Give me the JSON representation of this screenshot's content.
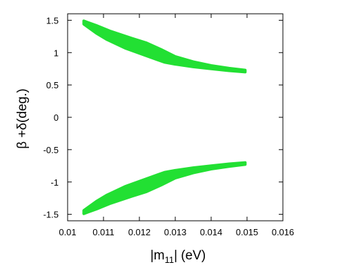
{
  "chart_data": {
    "type": "area",
    "xlabel": "|m11| (eV)",
    "xlabel_parts": {
      "pre": "|m",
      "sub": "11",
      "post": "| (eV)"
    },
    "ylabel": "β +δ(deg.)",
    "xlim": [
      0.01,
      0.016
    ],
    "ylim": [
      -1.6,
      1.6
    ],
    "xticks": [
      "0.01",
      "0.011",
      "0.012",
      "0.013",
      "0.014",
      "0.015",
      "0.016"
    ],
    "xtick_values": [
      0.01,
      0.011,
      0.012,
      0.013,
      0.014,
      0.015,
      0.016
    ],
    "yticks": [
      "1.5",
      "1",
      "0.5",
      "0",
      "-0.5",
      "-1",
      "-1.5"
    ],
    "ytick_values": [
      1.5,
      1,
      0.5,
      0,
      -0.5,
      -1,
      -1.5
    ],
    "grid": false,
    "legend": "none",
    "series": [
      {
        "color": "#22e033",
        "upper": [
          [
            0.01045,
            1.49
          ],
          [
            0.0108,
            1.42
          ],
          [
            0.0112,
            1.33
          ],
          [
            0.0118,
            1.22
          ],
          [
            0.0122,
            1.15
          ],
          [
            0.0126,
            1.05
          ],
          [
            0.013,
            0.94
          ],
          [
            0.0135,
            0.86
          ],
          [
            0.014,
            0.8
          ],
          [
            0.0145,
            0.76
          ],
          [
            0.01495,
            0.73
          ]
        ],
        "lower": [
          [
            0.01495,
            0.7
          ],
          [
            0.0145,
            0.72
          ],
          [
            0.014,
            0.75
          ],
          [
            0.0135,
            0.78
          ],
          [
            0.013,
            0.82
          ],
          [
            0.0127,
            0.85
          ],
          [
            0.0125,
            0.89
          ],
          [
            0.0121,
            0.97
          ],
          [
            0.0116,
            1.07
          ],
          [
            0.0111,
            1.2
          ],
          [
            0.0108,
            1.3
          ],
          [
            0.01045,
            1.44
          ]
        ]
      },
      {
        "color": "#22e033",
        "upper": [
          [
            0.01045,
            -1.44
          ],
          [
            0.0108,
            -1.3
          ],
          [
            0.0111,
            -1.2
          ],
          [
            0.0116,
            -1.07
          ],
          [
            0.0121,
            -0.97
          ],
          [
            0.0125,
            -0.89
          ],
          [
            0.0127,
            -0.85
          ],
          [
            0.013,
            -0.82
          ],
          [
            0.0135,
            -0.78
          ],
          [
            0.014,
            -0.75
          ],
          [
            0.0145,
            -0.72
          ],
          [
            0.01495,
            -0.7
          ]
        ],
        "lower": [
          [
            0.01495,
            -0.73
          ],
          [
            0.0145,
            -0.76
          ],
          [
            0.014,
            -0.8
          ],
          [
            0.0135,
            -0.86
          ],
          [
            0.013,
            -0.94
          ],
          [
            0.0126,
            -1.05
          ],
          [
            0.0122,
            -1.15
          ],
          [
            0.0118,
            -1.22
          ],
          [
            0.0112,
            -1.33
          ],
          [
            0.0108,
            -1.42
          ],
          [
            0.01045,
            -1.49
          ]
        ]
      }
    ]
  }
}
